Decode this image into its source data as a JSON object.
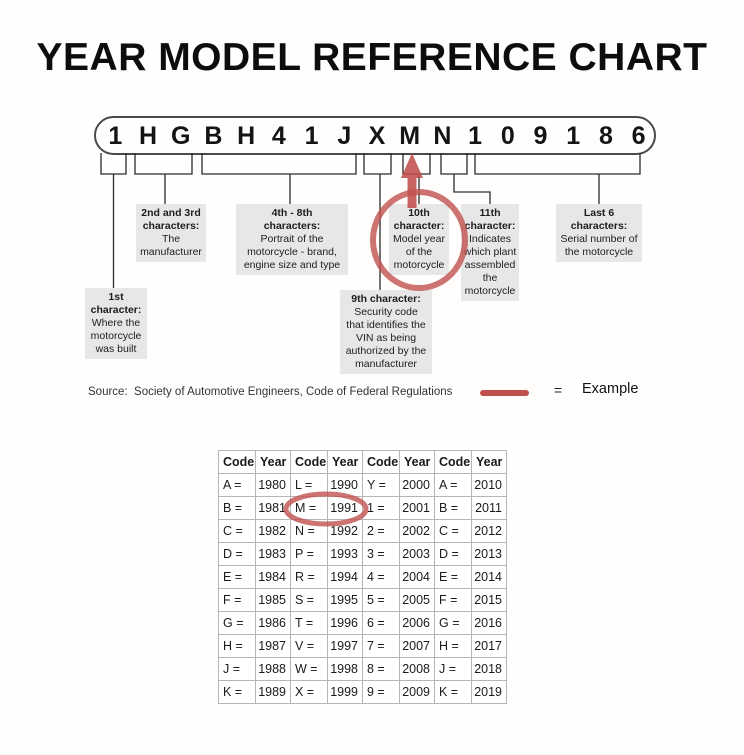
{
  "title": "YEAR MODEL REFERENCE CHART",
  "vin": {
    "characters": [
      "1",
      "H",
      "G",
      "B",
      "H",
      "4",
      "1",
      "J",
      "X",
      "M",
      "N",
      "1",
      "0",
      "9",
      "1",
      "8",
      "6"
    ]
  },
  "callouts": [
    {
      "id": "first",
      "heading": [
        "1st",
        "character:"
      ],
      "body": [
        "Where the",
        "motorcycle",
        "was built"
      ]
    },
    {
      "id": "secondthird",
      "heading": [
        "2nd and 3rd",
        "characters:"
      ],
      "body": [
        "The",
        "manufacturer"
      ]
    },
    {
      "id": "four-eight",
      "heading": [
        "4th - 8th",
        "characters:"
      ],
      "body": [
        "Portrait of the",
        "motorcycle - brand,",
        "engine size and type"
      ]
    },
    {
      "id": "ninth",
      "heading": [
        "9th character:"
      ],
      "body": [
        "Security code",
        "that identifies the",
        "VIN as being",
        "authorized by the",
        "manufacturer"
      ]
    },
    {
      "id": "tenth",
      "heading": [
        "10th",
        "character:"
      ],
      "body": [
        "Model year",
        "of the",
        "motorcycle"
      ]
    },
    {
      "id": "eleventh",
      "heading": [
        "11th",
        "character:"
      ],
      "body": [
        "Indicates",
        "which plant",
        "assembled",
        "the",
        "motorcycle"
      ]
    },
    {
      "id": "lastsix",
      "heading": [
        "Last 6",
        "characters:"
      ],
      "body": [
        "Serial number of",
        "the motorcycle"
      ]
    }
  ],
  "source_line": "Source:  Society of Automotive Engineers, Code of Federal Regulations",
  "legend": {
    "equals_sign": "=",
    "label": "Example"
  },
  "highlights": {
    "circled_vin_character": "M",
    "circled_callout": "10th character: Model year of the motorcycle",
    "circled_table_entry": "M = 1991"
  },
  "chart_data": {
    "type": "table",
    "title": "Model year code lookup",
    "columns": [
      "Code",
      "Year",
      "Code",
      "Year",
      "Code",
      "Year",
      "Code",
      "Year"
    ],
    "rows": [
      [
        "A =",
        "1980",
        "L =",
        "1990",
        "Y =",
        "2000",
        "A =",
        "2010"
      ],
      [
        "B =",
        "1981",
        "M =",
        "1991",
        "1 =",
        "2001",
        "B =",
        "2011"
      ],
      [
        "C =",
        "1982",
        "N =",
        "1992",
        "2 =",
        "2002",
        "C =",
        "2012"
      ],
      [
        "D =",
        "1983",
        "P =",
        "1993",
        "3 =",
        "2003",
        "D =",
        "2013"
      ],
      [
        "E =",
        "1984",
        "R =",
        "1994",
        "4 =",
        "2004",
        "E =",
        "2014"
      ],
      [
        "F =",
        "1985",
        "S =",
        "1995",
        "5 =",
        "2005",
        "F =",
        "2015"
      ],
      [
        "G =",
        "1986",
        "T =",
        "1996",
        "6 =",
        "2006",
        "G =",
        "2016"
      ],
      [
        "H =",
        "1987",
        "V =",
        "1997",
        "7 =",
        "2007",
        "H =",
        "2017"
      ],
      [
        "J =",
        "1988",
        "W =",
        "1998",
        "8 =",
        "2008",
        "J =",
        "2018"
      ],
      [
        "K =",
        "1989",
        "X =",
        "1999",
        "9 =",
        "2009",
        "K =",
        "2019"
      ]
    ]
  },
  "colors": {
    "example_red": "#c0504d",
    "callout_bg": "#e7e7e7"
  }
}
